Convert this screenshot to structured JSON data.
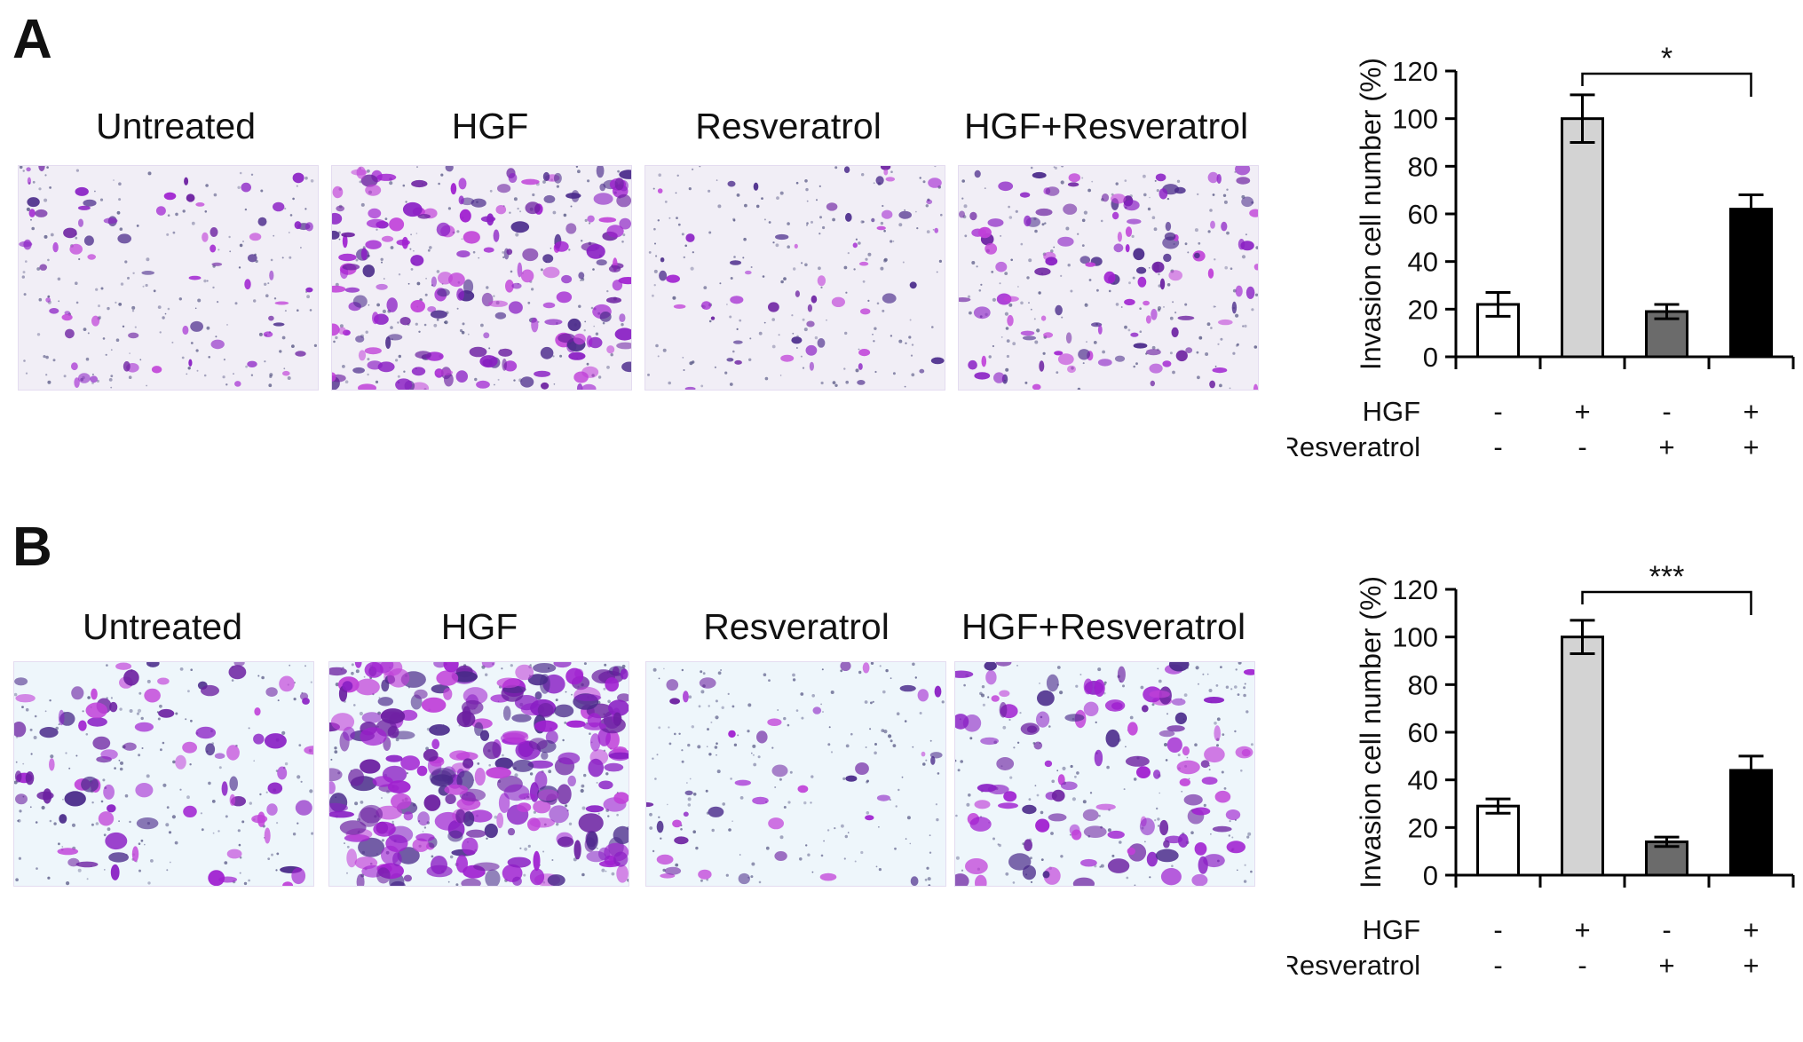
{
  "figure": {
    "panels": [
      {
        "letter": "A",
        "image_labels": [
          "Untreated",
          "HGF",
          "Resveratrol",
          "HGF+Resveratrol"
        ]
      },
      {
        "letter": "B",
        "image_labels": [
          "Untreated",
          "HGF",
          "Resveratrol",
          "HGF+Resveratrol"
        ]
      }
    ]
  },
  "chart_data": [
    {
      "type": "bar",
      "title": "",
      "xlabel": "",
      "ylabel": "Invasion cell number (%)",
      "ylim": [
        0,
        120
      ],
      "yticks": [
        0,
        20,
        40,
        60,
        80,
        100,
        120
      ],
      "yticklabels": [
        "0",
        "20",
        "40",
        "60",
        "80",
        "100",
        "120"
      ],
      "categories": [
        "1",
        "2",
        "3",
        "4"
      ],
      "values": [
        22,
        100,
        19,
        62
      ],
      "errors": [
        5,
        10,
        3,
        6
      ],
      "bar_colors": [
        "#ffffff",
        "#d3d3d3",
        "#6b6b6b",
        "#000000"
      ],
      "condition_rows": [
        {
          "label": "HGF",
          "marks": [
            "-",
            "+",
            "-",
            "+"
          ]
        },
        {
          "label": "Resveratrol",
          "marks": [
            "-",
            "-",
            "+",
            "+"
          ]
        }
      ],
      "significance": {
        "from": 1,
        "to": 3,
        "label": "*"
      }
    },
    {
      "type": "bar",
      "title": "",
      "xlabel": "",
      "ylabel": "Invasion cell number (%)",
      "ylim": [
        0,
        120
      ],
      "yticks": [
        0,
        20,
        40,
        60,
        80,
        100,
        120
      ],
      "yticklabels": [
        "0",
        "20",
        "40",
        "60",
        "80",
        "100",
        "120"
      ],
      "categories": [
        "1",
        "2",
        "3",
        "4"
      ],
      "values": [
        29,
        100,
        14,
        44
      ],
      "errors": [
        3,
        7,
        2,
        6
      ],
      "bar_colors": [
        "#ffffff",
        "#d3d3d3",
        "#6b6b6b",
        "#000000"
      ],
      "condition_rows": [
        {
          "label": "HGF",
          "marks": [
            "-",
            "+",
            "-",
            "+"
          ]
        },
        {
          "label": "Resveratrol",
          "marks": [
            "-",
            "-",
            "+",
            "+"
          ]
        }
      ],
      "significance": {
        "from": 1,
        "to": 3,
        "label": "***"
      }
    }
  ]
}
